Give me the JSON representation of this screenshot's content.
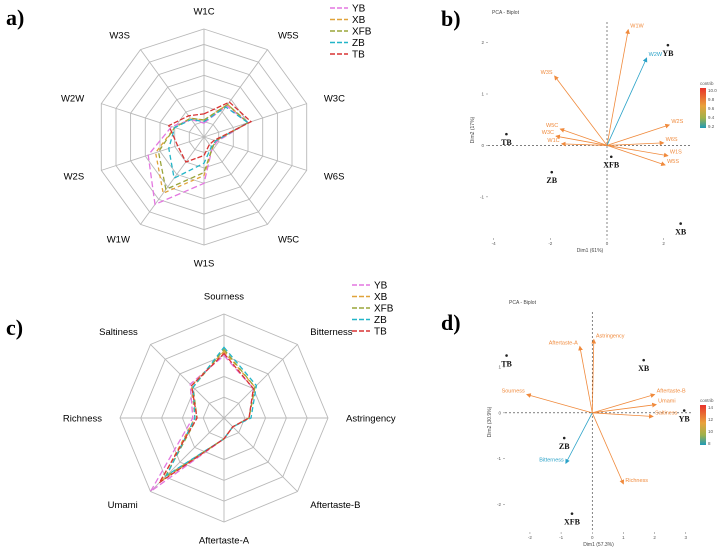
{
  "colors": {
    "YB": "#e377e0",
    "XB": "#e0a33a",
    "XFB": "#9aa53a",
    "ZB": "#22b5c8",
    "TB": "#d93434",
    "arrow_orange": "#f08a3c",
    "arrow_blue": "#2aa2c8",
    "grid": "#b9b9b9"
  },
  "chart_data": [
    {
      "id": "a",
      "panel_label": "a)",
      "type": "radar",
      "axes": [
        "W1C",
        "W5S",
        "W3C",
        "W6S",
        "W5C",
        "W1S",
        "W1W",
        "W2S",
        "W2W",
        "W3S"
      ],
      "rings": 7,
      "legend": [
        "YB",
        "XB",
        "XFB",
        "ZB",
        "TB"
      ],
      "series": [
        {
          "name": "YB",
          "values": [
            0.9,
            2.5,
            3.0,
            0.9,
            0.9,
            3.0,
            5.4,
            3.8,
            2.2,
            1.4
          ]
        },
        {
          "name": "XB",
          "values": [
            1.1,
            2.6,
            3.0,
            0.8,
            0.9,
            2.5,
            4.5,
            3.3,
            2.0,
            1.5
          ]
        },
        {
          "name": "XFB",
          "values": [
            1.1,
            2.6,
            3.0,
            0.8,
            0.9,
            2.3,
            4.2,
            3.1,
            2.0,
            1.5
          ]
        },
        {
          "name": "ZB",
          "values": [
            1.0,
            2.4,
            3.0,
            0.8,
            0.8,
            1.7,
            3.3,
            2.4,
            2.0,
            1.4
          ]
        },
        {
          "name": "TB",
          "values": [
            1.5,
            2.8,
            3.2,
            0.7,
            0.6,
            1.2,
            2.0,
            1.8,
            2.4,
            1.7
          ]
        }
      ]
    },
    {
      "id": "b",
      "panel_label": "b)",
      "type": "scatter",
      "title": "PCA - Biplot",
      "xlabel": "Dim1 (61%)",
      "ylabel": "Dim2 (17%)",
      "xlim": [
        -4.2,
        3.0
      ],
      "ylim": [
        -1.8,
        2.4
      ],
      "xticks": [
        -4,
        -2,
        0,
        2
      ],
      "yticks": [
        -1,
        0,
        1,
        2
      ],
      "legend_title": "contrib",
      "legend_ticks": [
        "10.0",
        "9.8",
        "9.6",
        "9.4",
        "9.2"
      ],
      "points": [
        {
          "label": "YB",
          "x": 2.15,
          "y": 1.95
        },
        {
          "label": "XB",
          "x": 2.6,
          "y": -1.52
        },
        {
          "label": "XFB",
          "x": 0.15,
          "y": -0.22
        },
        {
          "label": "ZB",
          "x": -1.95,
          "y": -0.52
        },
        {
          "label": "TB",
          "x": -3.55,
          "y": 0.22
        }
      ],
      "vectors": [
        {
          "label": "W1W",
          "x": 0.75,
          "y": 2.25,
          "color": "orange"
        },
        {
          "label": "W2W",
          "x": 1.4,
          "y": 1.7,
          "color": "blue"
        },
        {
          "label": "W3S",
          "x": -1.85,
          "y": 1.35,
          "color": "orange"
        },
        {
          "label": "W2S",
          "x": 2.2,
          "y": 0.4,
          "color": "orange"
        },
        {
          "label": "W6S",
          "x": 2.0,
          "y": 0.05,
          "color": "orange"
        },
        {
          "label": "W1S",
          "x": 2.15,
          "y": -0.2,
          "color": "orange"
        },
        {
          "label": "W5S",
          "x": 2.05,
          "y": -0.38,
          "color": "orange"
        },
        {
          "label": "W5C",
          "x": -1.65,
          "y": 0.32,
          "color": "orange"
        },
        {
          "label": "W3C",
          "x": -1.8,
          "y": 0.18,
          "color": "orange"
        },
        {
          "label": "W1C",
          "x": -1.6,
          "y": 0.03,
          "color": "orange"
        }
      ]
    },
    {
      "id": "c",
      "panel_label": "c)",
      "type": "radar",
      "axes": [
        "Sourness",
        "Bitterness",
        "Astringency",
        "Aftertaste-B",
        "Aftertaste-A",
        "Umami",
        "Richness",
        "Saltiness"
      ],
      "rings": 5,
      "legend": [
        "YB",
        "XB",
        "XFB",
        "ZB",
        "TB"
      ],
      "series": [
        {
          "name": "YB",
          "values": [
            3.0,
            2.0,
            1.2,
            0.6,
            1.0,
            5.0,
            1.5,
            2.3
          ]
        },
        {
          "name": "XB",
          "values": [
            3.2,
            2.1,
            1.2,
            0.6,
            1.0,
            4.3,
            1.4,
            2.2
          ]
        },
        {
          "name": "XFB",
          "values": [
            3.3,
            2.1,
            1.2,
            0.6,
            1.0,
            4.0,
            1.3,
            2.1
          ]
        },
        {
          "name": "ZB",
          "values": [
            3.4,
            2.2,
            1.3,
            0.6,
            1.0,
            3.9,
            1.4,
            2.1
          ]
        },
        {
          "name": "TB",
          "values": [
            3.1,
            2.0,
            1.2,
            0.6,
            1.0,
            4.4,
            1.3,
            2.2
          ]
        }
      ]
    },
    {
      "id": "d",
      "panel_label": "d)",
      "type": "scatter",
      "title": "PCA - Biplot",
      "xlabel": "Dim1 (57.3%)",
      "ylabel": "Dim2 (30.9%)",
      "xlim": [
        -2.8,
        3.2
      ],
      "ylim": [
        -2.6,
        2.2
      ],
      "xticks": [
        -2,
        -1,
        0,
        1,
        2,
        3
      ],
      "yticks": [
        -2,
        -1,
        0,
        1
      ],
      "legend_title": "contrib",
      "legend_ticks": [
        "14",
        "12",
        "10",
        "8"
      ],
      "points": [
        {
          "label": "YB",
          "x": 2.95,
          "y": 0.05
        },
        {
          "label": "XB",
          "x": 1.65,
          "y": 1.15
        },
        {
          "label": "TB",
          "x": -2.75,
          "y": 1.25
        },
        {
          "label": "ZB",
          "x": -0.9,
          "y": -0.55
        },
        {
          "label": "XFB",
          "x": -0.65,
          "y": -2.2
        }
      ],
      "vectors": [
        {
          "label": "Astringency",
          "x": 0.05,
          "y": 1.6,
          "color": "orange"
        },
        {
          "label": "Aftertaste-A",
          "x": -0.4,
          "y": 1.45,
          "color": "orange"
        },
        {
          "label": "Sourness",
          "x": -2.1,
          "y": 0.4,
          "color": "orange"
        },
        {
          "label": "Aftertaste-B",
          "x": 2.0,
          "y": 0.4,
          "color": "orange"
        },
        {
          "label": "Umami",
          "x": 2.05,
          "y": 0.18,
          "color": "orange"
        },
        {
          "label": "Saltiness",
          "x": 1.95,
          "y": -0.08,
          "color": "orange"
        },
        {
          "label": "Richness",
          "x": 1.0,
          "y": -1.55,
          "color": "orange"
        },
        {
          "label": "Bitterness",
          "x": -0.85,
          "y": -1.1,
          "color": "blue"
        }
      ]
    }
  ]
}
